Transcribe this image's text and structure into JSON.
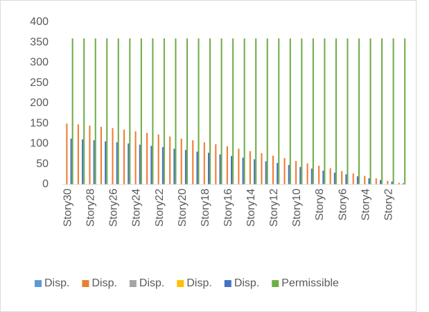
{
  "chart_data": {
    "type": "bar",
    "categories": [
      "Story30",
      null,
      "Story28",
      null,
      "Story26",
      null,
      "Story24",
      null,
      "Story22",
      null,
      "Story20",
      null,
      "Story18",
      null,
      "Story16",
      null,
      "Story14",
      null,
      "Story12",
      null,
      "Story10",
      null,
      "Story8",
      null,
      "Story6",
      null,
      "Story4",
      null,
      "Story2",
      null
    ],
    "series": [
      {
        "name": "Disp.",
        "color": "#5b9bd5",
        "values": [
          0,
          0,
          0,
          0,
          0,
          0,
          0,
          0,
          0,
          0,
          0,
          0,
          0,
          0,
          0,
          0,
          0,
          0,
          0,
          0,
          0,
          0,
          0,
          0,
          0,
          0,
          0,
          0,
          0,
          0
        ]
      },
      {
        "name": "Disp.",
        "color": "#ed7d31",
        "values": [
          150,
          148,
          145,
          142,
          139,
          135,
          131,
          127,
          123,
          118,
          113,
          109,
          104,
          99,
          94,
          88,
          82,
          77,
          71,
          65,
          58,
          52,
          46,
          40,
          33,
          27,
          21,
          15,
          9,
          4
        ]
      },
      {
        "name": "Disp.",
        "color": "#a5a5a5",
        "values": [
          0,
          0,
          0,
          0,
          0,
          0,
          0,
          0,
          0,
          0,
          0,
          0,
          0,
          0,
          0,
          0,
          0,
          0,
          0,
          0,
          0,
          0,
          0,
          0,
          0,
          0,
          0,
          0,
          0,
          0
        ]
      },
      {
        "name": "Disp.",
        "color": "#ffc000",
        "values": [
          0,
          0,
          0,
          0,
          0,
          0,
          0,
          0,
          0,
          0,
          0,
          0,
          0,
          0,
          0,
          0,
          0,
          0,
          0,
          0,
          0,
          0,
          0,
          0,
          0,
          0,
          0,
          0,
          0,
          0
        ]
      },
      {
        "name": "Disp.",
        "color": "#4472c4",
        "values": [
          113,
          111,
          109,
          106,
          104,
          101,
          98,
          95,
          92,
          88,
          85,
          81,
          78,
          74,
          70,
          66,
          62,
          57,
          53,
          48,
          43,
          39,
          34,
          29,
          25,
          20,
          15,
          11,
          7,
          3
        ]
      },
      {
        "name": "Permissible",
        "color": "#70ad47",
        "values": [
          360,
          360,
          360,
          360,
          360,
          360,
          360,
          360,
          360,
          360,
          360,
          360,
          360,
          360,
          360,
          360,
          360,
          360,
          360,
          360,
          360,
          360,
          360,
          360,
          360,
          360,
          360,
          360,
          360,
          360
        ]
      }
    ],
    "ylim": [
      0,
      400
    ],
    "yticks": [
      0,
      50,
      100,
      150,
      200,
      250,
      300,
      350,
      400
    ],
    "grid": false,
    "legend": "bottom"
  }
}
